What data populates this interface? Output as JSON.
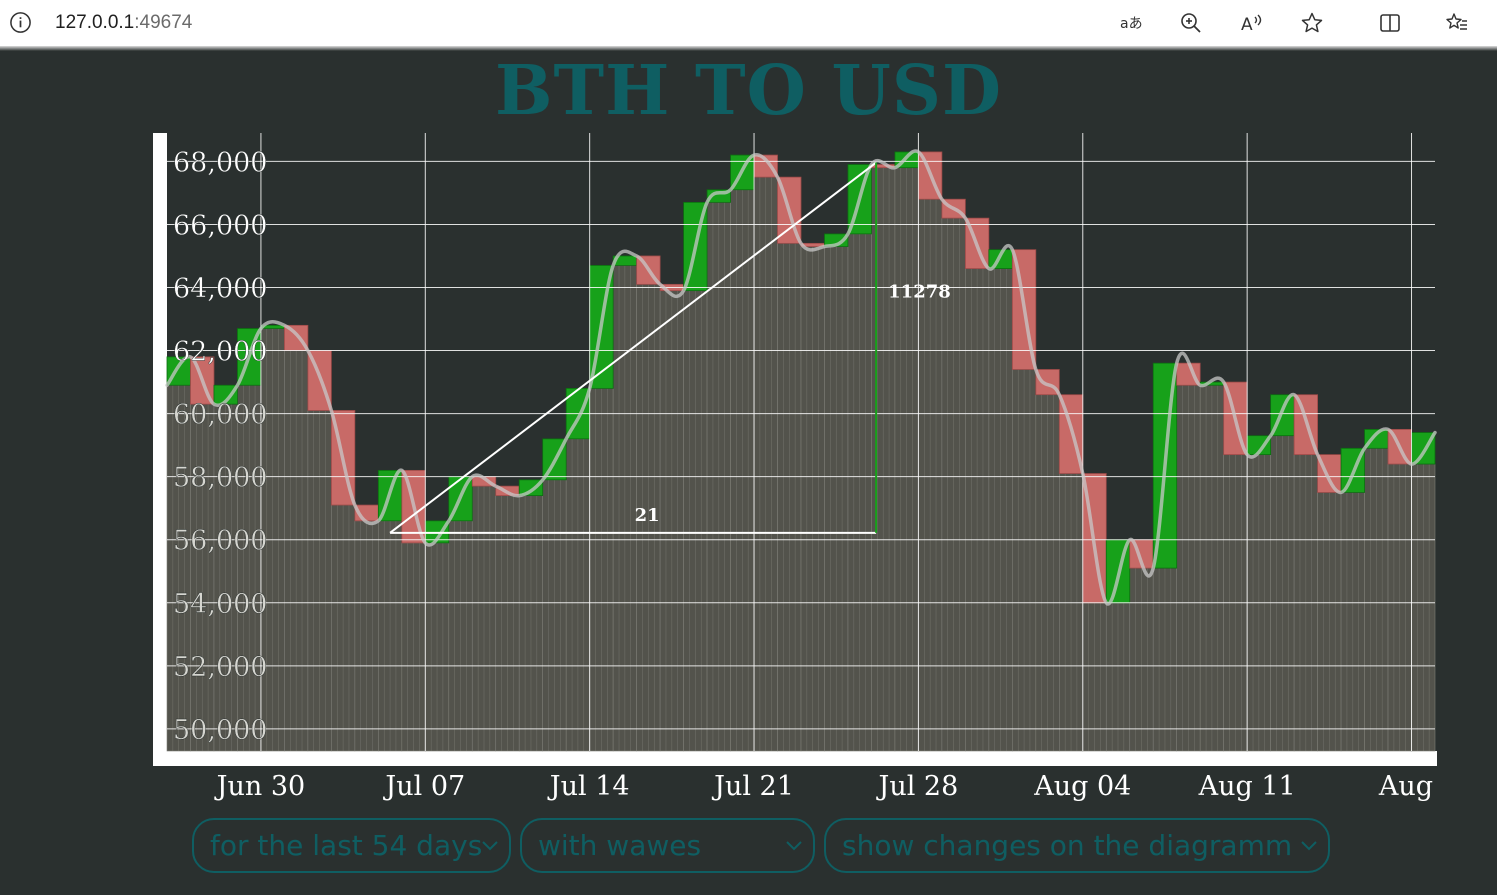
{
  "browser": {
    "url_host": "127.0.0.1",
    "url_port": ":49674",
    "icons": [
      "info-icon",
      "read-aloud-translate-icon",
      "zoom-icon",
      "read-aloud-icon",
      "favorite-star-icon",
      "split-screen-icon",
      "favorites-list-icon"
    ]
  },
  "page": {
    "title": "BTH TO USD"
  },
  "controls": {
    "period": "for the last 54 days",
    "mode": "with wawes",
    "changes": "show changes on the diagramm"
  },
  "colors": {
    "background": "#2a302f",
    "title": "#0f5e62",
    "up": "#17a11a",
    "down": "#c86a67",
    "bar": "#53534c",
    "grid": "#ffffff"
  },
  "chart_data": {
    "type": "bar",
    "title": "BTH TO USD",
    "ylim": [
      49300,
      68900
    ],
    "yticks": [
      "50,000",
      "52,000",
      "54,000",
      "56,000",
      "58,000",
      "60,000",
      "62,000",
      "64,000",
      "66,000",
      "68,000"
    ],
    "ytick_values": [
      50000,
      52000,
      54000,
      56000,
      58000,
      60000,
      62000,
      64000,
      66000,
      68000
    ],
    "xticks": [
      "Jun 30",
      "Jul 07",
      "Jul 14",
      "Jul 21",
      "Jul 28",
      "Aug 04",
      "Aug 11",
      "Aug"
    ],
    "xtick_index": [
      4,
      11,
      18,
      25,
      32,
      39,
      46,
      53
    ],
    "grid": true,
    "series": [
      {
        "values": [
          60900,
          61800,
          60300,
          60900,
          62700,
          62800,
          62000,
          60100,
          57100,
          56600,
          58200,
          55900,
          56600,
          58000,
          57700,
          57400,
          57900,
          59200,
          60800,
          64700,
          65000,
          64100,
          63900,
          66700,
          67100,
          68200,
          67500,
          65400,
          65300,
          65700,
          67900,
          67800,
          68300,
          66800,
          66200,
          64600,
          65200,
          61400,
          60600,
          58100,
          54000,
          56000,
          55100,
          61600,
          60900,
          61000,
          58700,
          59300,
          60600,
          58700,
          57500,
          58900,
          59500,
          58400,
          59400
        ]
      }
    ],
    "change_annotation": {
      "days": "21",
      "change": "11278",
      "from_index": 9,
      "to_index": 30
    }
  }
}
